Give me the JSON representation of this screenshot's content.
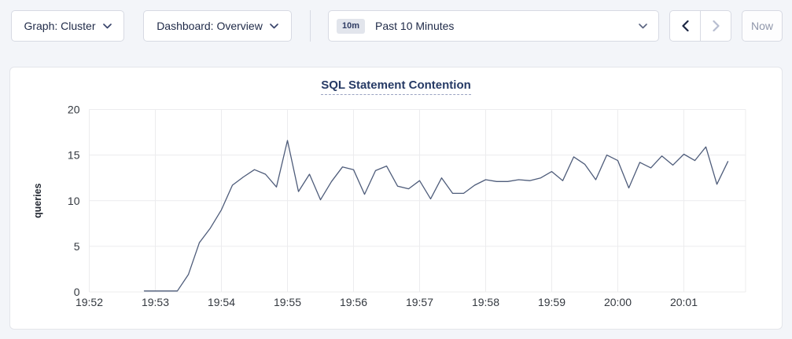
{
  "toolbar": {
    "graph_dropdown_label": "Graph: Cluster",
    "dashboard_dropdown_label": "Dashboard: Overview",
    "time_range_badge": "10m",
    "time_range_label": "Past 10 Minutes",
    "now_button_label": "Now"
  },
  "icons": {
    "graph_dropdown_caret": "chevron-down",
    "dashboard_dropdown_caret": "chevron-down",
    "time_range_caret": "chevron-down",
    "time_prev": "chevron-left",
    "time_next": "chevron-right"
  },
  "colors": {
    "page_background": "#f3f5f9",
    "panel_background": "#ffffff",
    "button_border": "#d7dae3",
    "text_dark_navy": "#1e2947",
    "disabled_text": "#8f96aa",
    "disabled_icon": "#b7bdd0",
    "grid_line": "#ececee",
    "tick_text": "#33383f",
    "series_line": "#4e5c7a",
    "title_text": "#263a65"
  },
  "chart": {
    "title": "SQL Statement Contention"
  },
  "chart_data": {
    "type": "line",
    "title": "SQL Statement Contention",
    "xlabel": "",
    "ylabel": "queries",
    "ylim": [
      0,
      20
    ],
    "y_ticks": [
      0,
      5,
      10,
      15,
      20
    ],
    "x_ticks": [
      "19:52",
      "19:53",
      "19:54",
      "19:55",
      "19:56",
      "19:57",
      "19:58",
      "19:59",
      "20:00",
      "20:01"
    ],
    "x_start": "19:52:00",
    "x_interval_seconds": 10,
    "grid": true,
    "legend_position": "none",
    "series": [
      {
        "name": "queries",
        "color": "#4e5c7a",
        "points": [
          [
            "19:52:50",
            0.1
          ],
          [
            "19:53:00",
            0.1
          ],
          [
            "19:53:10",
            0.1
          ],
          [
            "19:53:20",
            0.1
          ],
          [
            "19:53:30",
            1.9
          ],
          [
            "19:53:40",
            5.4
          ],
          [
            "19:53:50",
            7.0
          ],
          [
            "19:54:00",
            9.0
          ],
          [
            "19:54:10",
            11.7
          ],
          [
            "19:54:20",
            12.6
          ],
          [
            "19:54:30",
            13.4
          ],
          [
            "19:54:40",
            12.9
          ],
          [
            "19:54:50",
            11.5
          ],
          [
            "19:55:00",
            16.6
          ],
          [
            "19:55:10",
            11.0
          ],
          [
            "19:55:20",
            12.9
          ],
          [
            "19:55:30",
            10.1
          ],
          [
            "19:55:40",
            12.1
          ],
          [
            "19:55:50",
            13.7
          ],
          [
            "19:56:00",
            13.4
          ],
          [
            "19:56:10",
            10.7
          ],
          [
            "19:56:20",
            13.3
          ],
          [
            "19:56:30",
            13.8
          ],
          [
            "19:56:40",
            11.6
          ],
          [
            "19:56:50",
            11.3
          ],
          [
            "19:57:00",
            12.2
          ],
          [
            "19:57:10",
            10.2
          ],
          [
            "19:57:20",
            12.5
          ],
          [
            "19:57:30",
            10.8
          ],
          [
            "19:57:40",
            10.8
          ],
          [
            "19:57:50",
            11.7
          ],
          [
            "19:58:00",
            12.3
          ],
          [
            "19:58:10",
            12.1
          ],
          [
            "19:58:20",
            12.1
          ],
          [
            "19:58:30",
            12.3
          ],
          [
            "19:58:40",
            12.2
          ],
          [
            "19:58:50",
            12.5
          ],
          [
            "19:59:00",
            13.2
          ],
          [
            "19:59:10",
            12.2
          ],
          [
            "19:59:20",
            14.8
          ],
          [
            "19:59:30",
            14.0
          ],
          [
            "19:59:40",
            12.3
          ],
          [
            "19:59:50",
            15.0
          ],
          [
            "20:00:00",
            14.4
          ],
          [
            "20:00:10",
            11.4
          ],
          [
            "20:00:20",
            14.2
          ],
          [
            "20:00:30",
            13.6
          ],
          [
            "20:00:40",
            14.9
          ],
          [
            "20:00:50",
            13.9
          ],
          [
            "20:01:00",
            15.1
          ],
          [
            "20:01:10",
            14.4
          ],
          [
            "20:01:20",
            15.9
          ],
          [
            "20:01:30",
            11.8
          ],
          [
            "20:01:40",
            14.3
          ]
        ]
      }
    ]
  }
}
